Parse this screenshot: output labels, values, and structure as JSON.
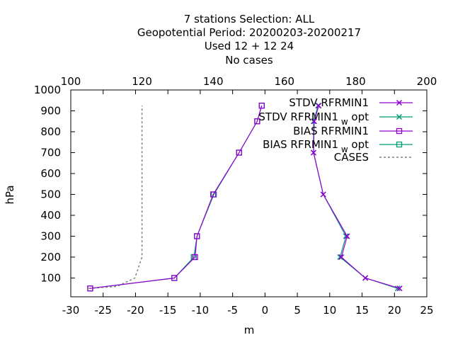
{
  "chart_data": {
    "type": "line",
    "title_lines": [
      "7 stations Selection: ALL",
      "Geopotential  Period: 20200203-20200217",
      "Used  12 + 12 24",
      "No cases"
    ],
    "xlabel": "m",
    "ylabel": "hPa",
    "xlim": [
      -30,
      25
    ],
    "ylim": [
      1000,
      10
    ],
    "x_ticks": [
      -30,
      -25,
      -20,
      -15,
      -10,
      -5,
      0,
      5,
      10,
      15,
      20,
      25
    ],
    "x_tick_labels": [
      "-30",
      "-25",
      "-20",
      "-15",
      "-10",
      "-5",
      "0",
      "5",
      "10",
      "15",
      "20",
      "25"
    ],
    "x2lim": [
      100,
      200
    ],
    "x2_ticks": [
      100,
      120,
      140,
      160,
      180,
      200
    ],
    "x2_tick_labels": [
      "100",
      "120",
      "140",
      "160",
      "180",
      "200"
    ],
    "y_ticks": [
      100,
      200,
      300,
      400,
      500,
      600,
      700,
      800,
      900,
      1000
    ],
    "y_tick_labels": [
      "100",
      "200",
      "300",
      "400",
      "500",
      "600",
      "700",
      "800",
      "900",
      "1000"
    ],
    "grid": false,
    "legend_placement": "top-right",
    "series": [
      {
        "name": "STDV RFRMIN1",
        "color": "#9400d3",
        "marker": "x",
        "points": [
          [
            20.8,
            50
          ],
          [
            15.5,
            100
          ],
          [
            11.8,
            200
          ],
          [
            12.7,
            300
          ],
          [
            9.0,
            500
          ],
          [
            7.5,
            700
          ],
          [
            7.6,
            850
          ],
          [
            8.3,
            925
          ]
        ]
      },
      {
        "name": "STDV RFRMIN1",
        "name_subscript": "w",
        "name_suffix": "opt",
        "color": "#009e73",
        "marker": "x",
        "points": [
          [
            20.5,
            50
          ],
          [
            15.5,
            100
          ],
          [
            11.6,
            200
          ],
          [
            12.5,
            300
          ],
          [
            9.0,
            500
          ],
          [
            7.5,
            700
          ],
          [
            7.5,
            850
          ],
          [
            8.2,
            925
          ]
        ]
      },
      {
        "name": "BIAS RFRMIN1",
        "color": "#9400d3",
        "marker": "square",
        "points": [
          [
            -27.0,
            50
          ],
          [
            -14.0,
            100
          ],
          [
            -10.8,
            200
          ],
          [
            -10.5,
            300
          ],
          [
            -8.0,
            500
          ],
          [
            -4.0,
            700
          ],
          [
            -1.2,
            850
          ],
          [
            -0.5,
            925
          ]
        ]
      },
      {
        "name": "BIAS RFRMIN1",
        "name_subscript": "w",
        "name_suffix": "opt",
        "color": "#009e73",
        "marker": "square",
        "points": [
          [
            -27.0,
            50
          ],
          [
            -14.0,
            100
          ],
          [
            -11.0,
            200
          ],
          [
            -10.5,
            300
          ],
          [
            -7.9,
            500
          ],
          [
            -4.0,
            700
          ],
          [
            -1.2,
            850
          ],
          [
            -0.5,
            925
          ]
        ]
      },
      {
        "name": "CASES",
        "color": "#808080",
        "dash": true,
        "axis": "x2",
        "points": [
          [
            105,
            50
          ],
          [
            113,
            60
          ],
          [
            118,
            100
          ],
          [
            119,
            150
          ],
          [
            120,
            200
          ],
          [
            120,
            300
          ],
          [
            120,
            500
          ],
          [
            120,
            700
          ],
          [
            120,
            850
          ],
          [
            120,
            925
          ]
        ]
      }
    ]
  }
}
